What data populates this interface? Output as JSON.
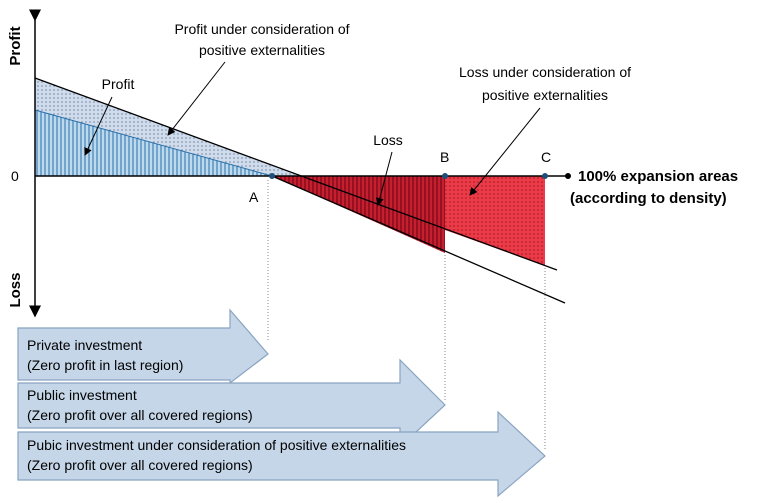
{
  "axis": {
    "y_top": "Profit",
    "y_bottom": "Loss",
    "zero": "0",
    "x_label_1": "100% expansion areas",
    "x_label_2": "(according to density)"
  },
  "points": {
    "a": "A",
    "b": "B",
    "c": "C"
  },
  "annotations": {
    "profit": "Profit",
    "profit_ext_1": "Profit under consideration of",
    "profit_ext_2": "positive externalities",
    "loss": "Loss",
    "loss_ext_1": "Loss under consideration of",
    "loss_ext_2": "positive externalities"
  },
  "arrows": [
    {
      "line1": "Private investment",
      "line2": "(Zero profit in last region)"
    },
    {
      "line1": "Public investment",
      "line2": "(Zero profit over all covered regions)"
    },
    {
      "line1": "Pubic investment under consideration of positive externalities",
      "line2": "(Zero profit over all covered regions)"
    }
  ]
}
